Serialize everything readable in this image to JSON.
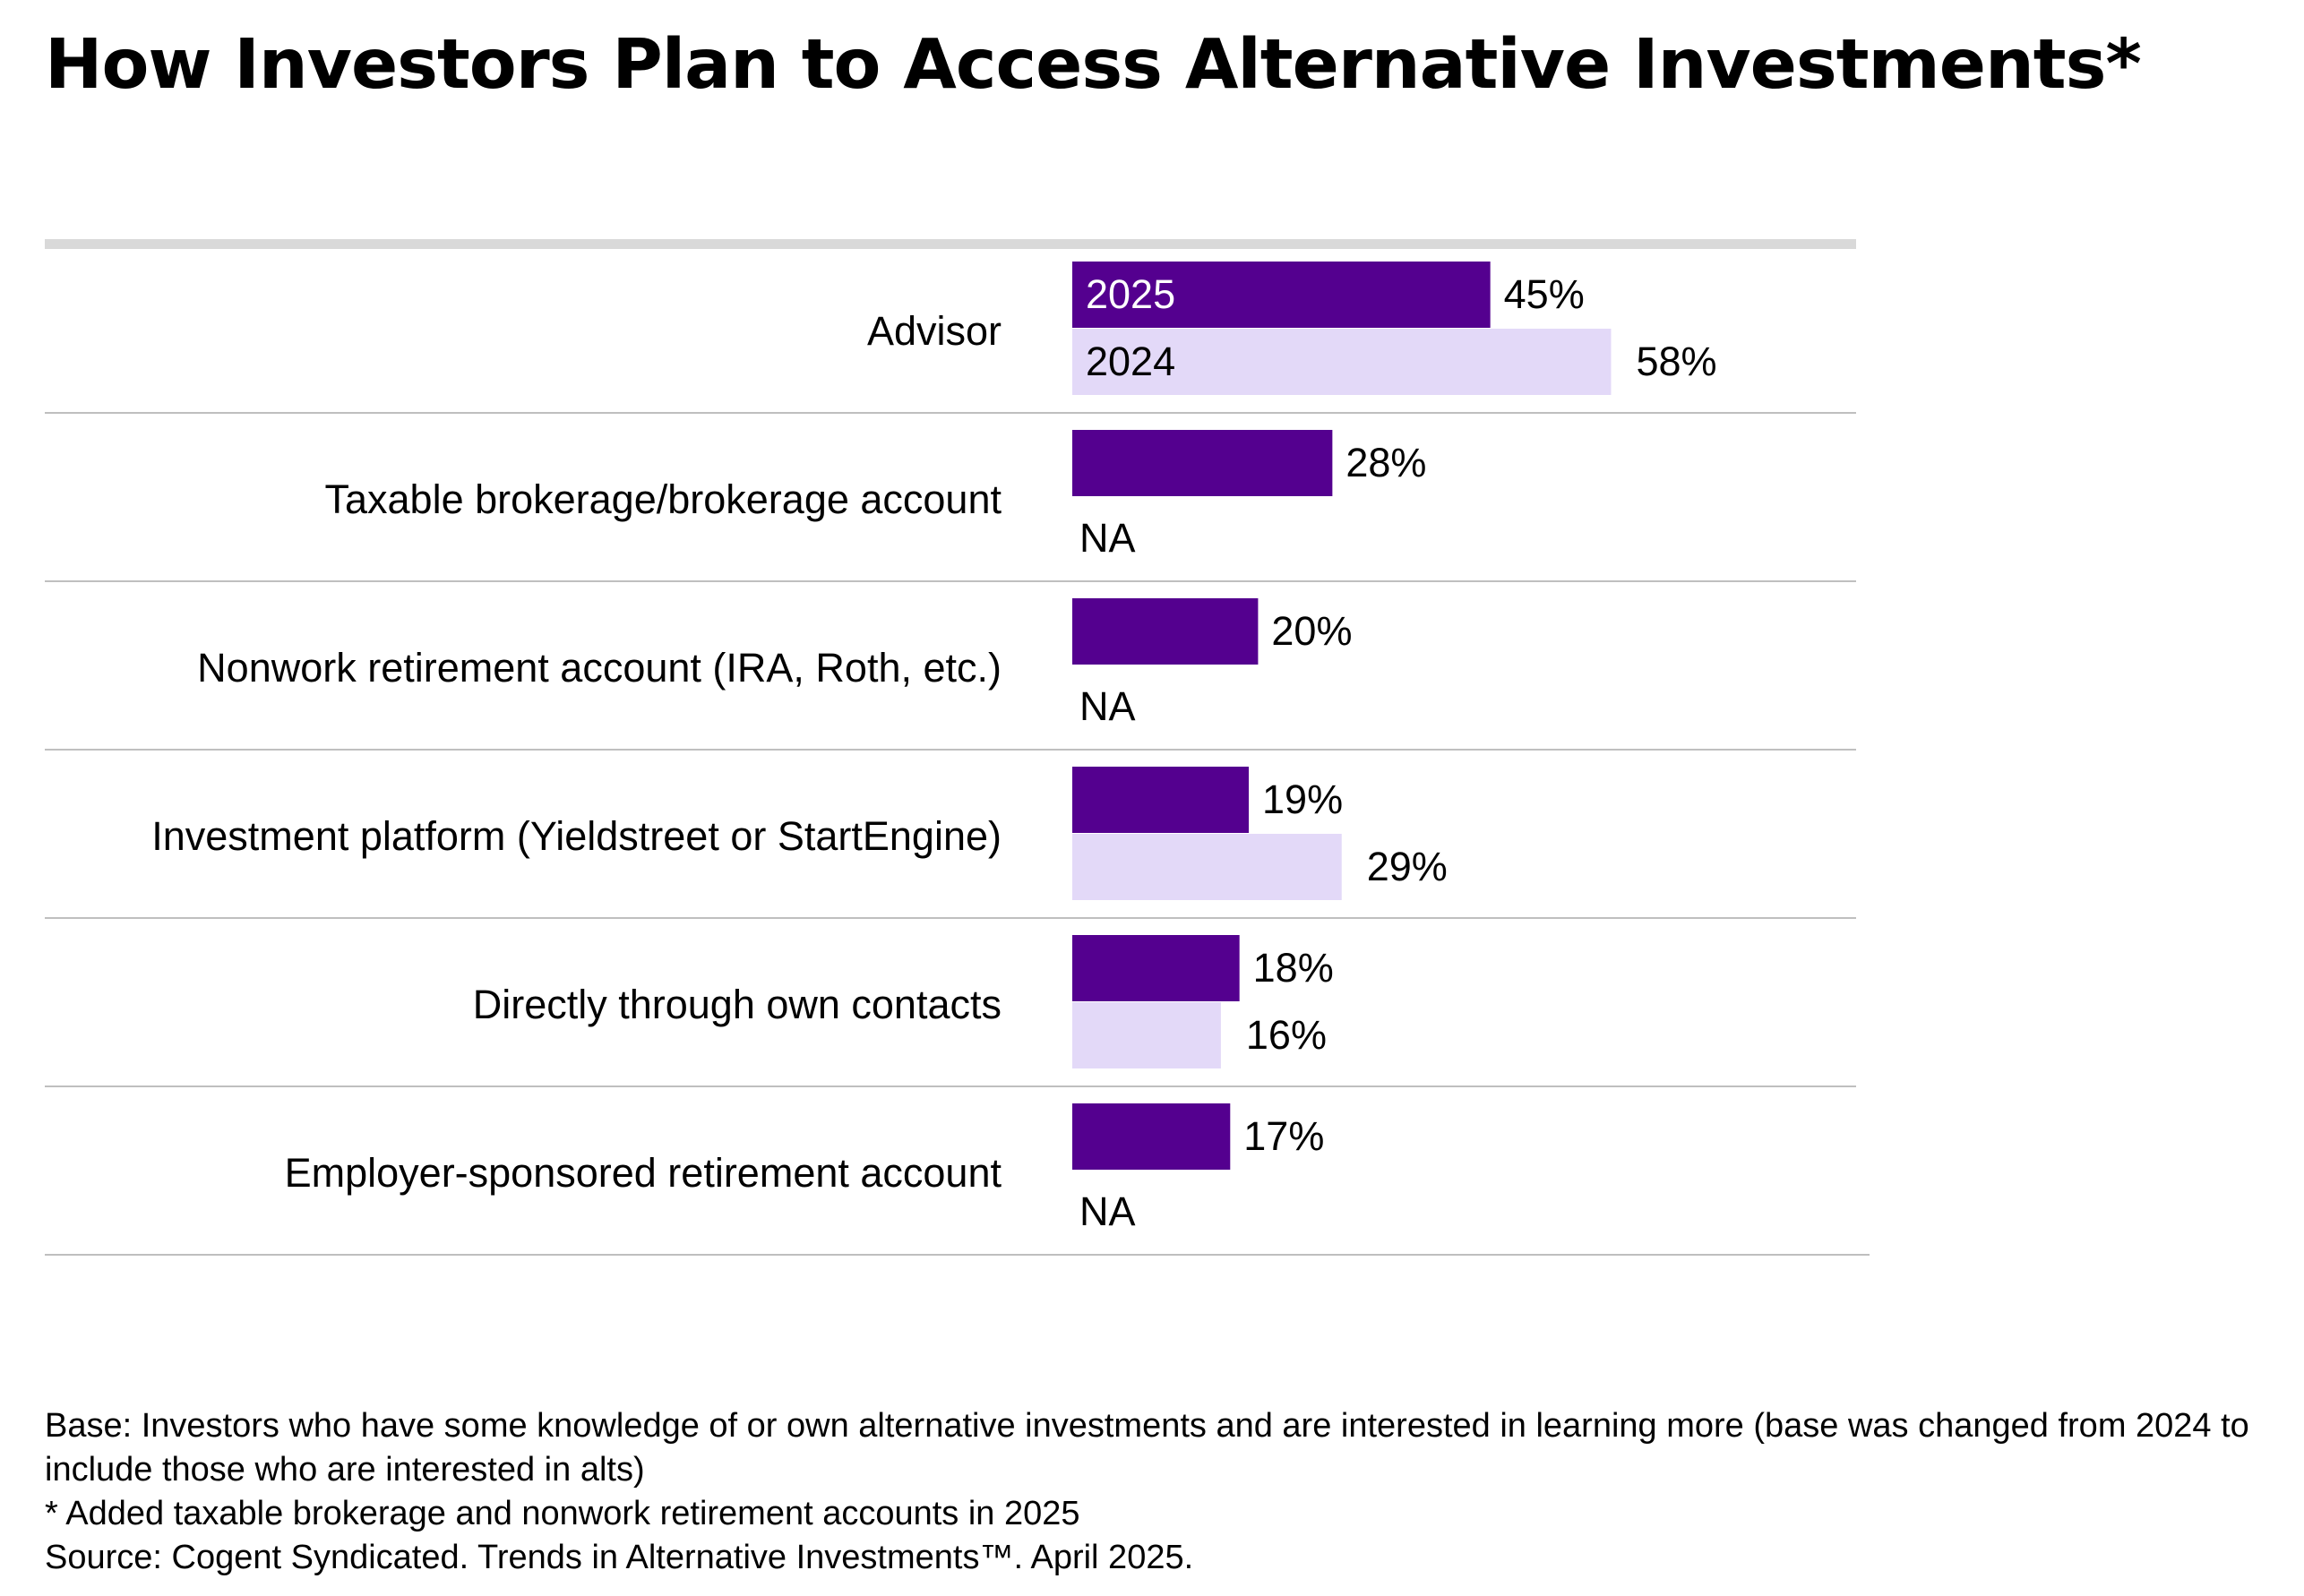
{
  "title": "How Investors Plan to Access Alternative Investments*",
  "colors": {
    "2025": "#54008f",
    "2024": "#e3d9f8",
    "top_rule": "#d9d9d9",
    "row_rule": "#bfbfbf"
  },
  "chart_data": {
    "type": "bar",
    "orientation": "horizontal",
    "categories": [
      "Advisor",
      "Taxable brokerage/brokerage account",
      "Nonwork retirement account (IRA, Roth, etc.)",
      "Investment platform (Yieldstreet or StartEngine)",
      "Directly through own contacts",
      "Employer-sponsored retirement account"
    ],
    "series": [
      {
        "name": "2025",
        "values": [
          45,
          28,
          20,
          19,
          18,
          17
        ],
        "labels": [
          "45%",
          "28%",
          "20%",
          "19%",
          "18%",
          "17%"
        ]
      },
      {
        "name": "2024",
        "values": [
          58,
          null,
          null,
          29,
          16,
          null
        ],
        "labels": [
          "58%",
          "NA",
          "NA",
          "29%",
          "16%",
          "NA"
        ]
      }
    ],
    "xlim": [
      0,
      100
    ],
    "legend": "inside first bars",
    "grid": false
  },
  "notes": [
    "Base: Investors who have some knowledge of or own alternative investments and are interested in learning more (base was changed from 2024 to include those who are interested in alts)",
    "* Added taxable brokerage and nonwork retirement accounts in 2025",
    "Source: Cogent Syndicated. Trends in Alternative Investments™. April 2025."
  ]
}
